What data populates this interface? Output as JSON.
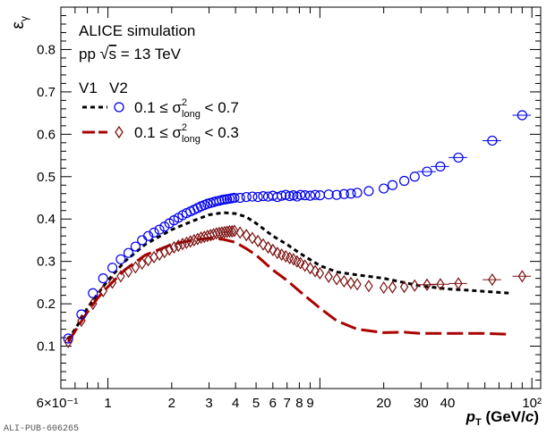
{
  "chart_data": {
    "type": "scatter",
    "title": "",
    "xlabel": "p_T (GeV/c)",
    "ylabel": "ε_γ",
    "xscale": "log",
    "xlim": [
      0.6,
      110
    ],
    "ylim": [
      0.0,
      0.9
    ],
    "xticks": [
      {
        "value": 0.6,
        "label": "6×10⁻¹"
      },
      {
        "value": 1,
        "label": "1"
      },
      {
        "value": 2,
        "label": "2"
      },
      {
        "value": 3,
        "label": "3"
      },
      {
        "value": 4,
        "label": "4"
      },
      {
        "value": 5,
        "label": "5"
      },
      {
        "value": 6,
        "label": "6"
      },
      {
        "value": 7,
        "label": "7"
      },
      {
        "value": 8,
        "label": "8"
      },
      {
        "value": 9,
        "label": "9"
      },
      {
        "value": 20,
        "label": "20"
      },
      {
        "value": 30,
        "label": "30"
      },
      {
        "value": 40,
        "label": "40"
      },
      {
        "value": 100,
        "label": "10²"
      }
    ],
    "yticks": [
      {
        "value": 0.1,
        "label": "0.1"
      },
      {
        "value": 0.2,
        "label": "0.2"
      },
      {
        "value": 0.3,
        "label": "0.3"
      },
      {
        "value": 0.4,
        "label": "0.4"
      },
      {
        "value": 0.5,
        "label": "0.5"
      },
      {
        "value": 0.6,
        "label": "0.6"
      },
      {
        "value": 0.7,
        "label": "0.7"
      },
      {
        "value": 0.8,
        "label": "0.8"
      }
    ],
    "annotations": [
      "ALICE simulation",
      "pp √s = 13 TeV"
    ],
    "legend": {
      "placement": "top-left",
      "headers": [
        "V1",
        "V2"
      ],
      "rows": [
        {
          "label": "0.1 ≤ σ²long < 0.7",
          "line_style": "short-dash",
          "line_color": "#000000",
          "marker": "open-circle",
          "marker_color": "#0000ee"
        },
        {
          "label": "0.1 ≤ σ²long < 0.3",
          "line_style": "long-dash",
          "line_color": "#aa0000",
          "marker": "open-diamond",
          "marker_color": "#7a1010"
        }
      ]
    },
    "series": [
      {
        "legend_row": 0,
        "role": "V1",
        "kind": "line",
        "style": "short-dash",
        "color": "#000000",
        "x": [
          0.65,
          0.72,
          0.8,
          0.9,
          1.0,
          1.2,
          1.5,
          2.0,
          2.5,
          3.0,
          3.5,
          4.0,
          4.5,
          5.0,
          6.0,
          7.0,
          8.0,
          10.0,
          12.0,
          15.0,
          20.0,
          25.0,
          30.0,
          40.0,
          50.0,
          80.0
        ],
        "y": [
          0.115,
          0.15,
          0.19,
          0.225,
          0.255,
          0.3,
          0.34,
          0.375,
          0.395,
          0.41,
          0.415,
          0.413,
          0.405,
          0.39,
          0.36,
          0.34,
          0.32,
          0.29,
          0.275,
          0.268,
          0.26,
          0.25,
          0.242,
          0.235,
          0.232,
          0.225
        ]
      },
      {
        "legend_row": 1,
        "role": "V1",
        "kind": "line",
        "style": "long-dash",
        "color": "#aa0000",
        "x": [
          0.65,
          0.72,
          0.8,
          0.9,
          1.0,
          1.2,
          1.5,
          2.0,
          2.5,
          3.0,
          3.5,
          4.0,
          4.5,
          5.0,
          6.0,
          7.0,
          8.0,
          10.0,
          12.0,
          15.0,
          20.0,
          25.0,
          30.0,
          40.0,
          60.0,
          80.0
        ],
        "y": [
          0.11,
          0.145,
          0.18,
          0.215,
          0.24,
          0.28,
          0.315,
          0.34,
          0.35,
          0.355,
          0.352,
          0.345,
          0.33,
          0.315,
          0.28,
          0.255,
          0.23,
          0.19,
          0.16,
          0.14,
          0.132,
          0.133,
          0.13,
          0.13,
          0.13,
          0.128
        ]
      },
      {
        "legend_row": 0,
        "role": "V2",
        "kind": "markers",
        "marker": "open-circle",
        "color": "#0000ee",
        "x": [
          0.65,
          0.75,
          0.85,
          0.95,
          1.05,
          1.15,
          1.25,
          1.35,
          1.45,
          1.55,
          1.65,
          1.75,
          1.85,
          1.95,
          2.05,
          2.15,
          2.25,
          2.35,
          2.45,
          2.55,
          2.65,
          2.75,
          2.85,
          2.95,
          3.05,
          3.15,
          3.25,
          3.35,
          3.45,
          3.55,
          3.65,
          3.75,
          3.85,
          3.95,
          4.2,
          4.5,
          4.8,
          5.1,
          5.4,
          5.7,
          6.0,
          6.3,
          6.6,
          6.9,
          7.2,
          7.5,
          7.8,
          8.1,
          8.5,
          9.0,
          9.5,
          10.0,
          11.0,
          12.0,
          13.0,
          14.0,
          15.0,
          17.0,
          20.0,
          22.0,
          25.0,
          28.0,
          32.0,
          37.0,
          45.0,
          65.0,
          90.0
        ],
        "y": [
          0.118,
          0.175,
          0.225,
          0.26,
          0.285,
          0.305,
          0.32,
          0.335,
          0.35,
          0.36,
          0.368,
          0.375,
          0.382,
          0.39,
          0.397,
          0.403,
          0.409,
          0.414,
          0.418,
          0.422,
          0.426,
          0.43,
          0.433,
          0.436,
          0.438,
          0.44,
          0.442,
          0.443,
          0.445,
          0.446,
          0.447,
          0.448,
          0.449,
          0.45,
          0.45,
          0.452,
          0.453,
          0.452,
          0.454,
          0.453,
          0.455,
          0.452,
          0.455,
          0.457,
          0.454,
          0.456,
          0.453,
          0.457,
          0.456,
          0.455,
          0.457,
          0.456,
          0.458,
          0.457,
          0.459,
          0.46,
          0.462,
          0.466,
          0.472,
          0.48,
          0.49,
          0.5,
          0.512,
          0.524,
          0.545,
          0.585,
          0.645
        ],
        "xerr_from": 32.0
      },
      {
        "legend_row": 1,
        "role": "V2",
        "kind": "markers",
        "marker": "open-diamond",
        "color": "#7a1010",
        "x": [
          0.65,
          0.75,
          0.85,
          0.95,
          1.05,
          1.15,
          1.25,
          1.35,
          1.45,
          1.55,
          1.65,
          1.75,
          1.85,
          1.95,
          2.05,
          2.15,
          2.25,
          2.35,
          2.45,
          2.55,
          2.65,
          2.75,
          2.85,
          2.95,
          3.05,
          3.15,
          3.25,
          3.35,
          3.45,
          3.55,
          3.65,
          3.75,
          3.85,
          3.95,
          4.2,
          4.5,
          4.8,
          5.1,
          5.4,
          5.7,
          6.0,
          6.3,
          6.6,
          6.9,
          7.2,
          7.5,
          7.8,
          8.1,
          8.5,
          9.0,
          9.5,
          10.0,
          11.0,
          12.0,
          13.0,
          14.0,
          15.0,
          17.0,
          20.0,
          22.0,
          25.0,
          28.0,
          32.0,
          37.0,
          45.0,
          65.0,
          90.0
        ],
        "y": [
          0.11,
          0.16,
          0.2,
          0.23,
          0.25,
          0.265,
          0.276,
          0.286,
          0.295,
          0.303,
          0.31,
          0.316,
          0.322,
          0.328,
          0.333,
          0.337,
          0.341,
          0.344,
          0.347,
          0.35,
          0.353,
          0.356,
          0.358,
          0.36,
          0.362,
          0.364,
          0.366,
          0.367,
          0.368,
          0.369,
          0.37,
          0.371,
          0.371,
          0.372,
          0.368,
          0.362,
          0.355,
          0.348,
          0.34,
          0.333,
          0.327,
          0.32,
          0.316,
          0.312,
          0.308,
          0.305,
          0.3,
          0.296,
          0.29,
          0.284,
          0.277,
          0.272,
          0.264,
          0.258,
          0.253,
          0.249,
          0.246,
          0.242,
          0.238,
          0.239,
          0.24,
          0.243,
          0.245,
          0.246,
          0.248,
          0.257,
          0.265
        ],
        "xerr_from": 32.0
      }
    ]
  },
  "footer": {
    "publication_id": "ALI-PUB-606265"
  }
}
